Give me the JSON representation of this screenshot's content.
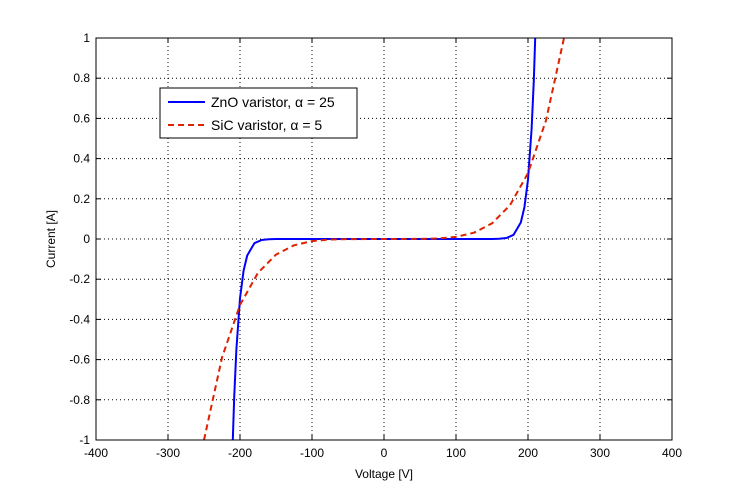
{
  "chart_data": {
    "type": "line",
    "title": "",
    "xlabel": "Voltage [V]",
    "ylabel": "Current [A]",
    "xlim": [
      -400,
      400
    ],
    "ylim": [
      -1,
      1
    ],
    "xticks": [
      -400,
      -300,
      -200,
      -100,
      0,
      100,
      200,
      300,
      400
    ],
    "yticks": [
      -1,
      -0.8,
      -0.6,
      -0.4,
      -0.2,
      0,
      0.2,
      0.4,
      0.6,
      0.8,
      1
    ],
    "xtick_labels": [
      "-400",
      "-300",
      "-200",
      "-100",
      "0",
      "100",
      "200",
      "300",
      "400"
    ],
    "ytick_labels": [
      "-1",
      "-0.8",
      "-0.6",
      "-0.4",
      "-0.2",
      "0",
      "0.2",
      "0.4",
      "0.6",
      "0.8",
      "1"
    ],
    "grid": true,
    "legend_position": "top-left",
    "series": [
      {
        "name": "ZnO varistor, α = 25",
        "color": "#0000ff",
        "style": "solid",
        "x": [
          -210,
          -208,
          -205,
          -200,
          -195,
          -190,
          -180,
          -170,
          -160,
          -150,
          -100,
          -50,
          0,
          50,
          100,
          150,
          160,
          170,
          180,
          190,
          195,
          200,
          205,
          208,
          210
        ],
        "y": [
          -1,
          -0.787,
          -0.548,
          -0.295,
          -0.157,
          -0.082,
          -0.021,
          -0.0051,
          -0.0011,
          -0.0002,
          0,
          0,
          0,
          0,
          0,
          0.0002,
          0.0011,
          0.0051,
          0.021,
          0.082,
          0.157,
          0.295,
          0.548,
          0.787,
          1
        ]
      },
      {
        "name": "SiC varistor, α = 5",
        "color": "#dd2200",
        "style": "dashed",
        "x": [
          -250,
          -225,
          -200,
          -175,
          -150,
          -125,
          -100,
          -75,
          -50,
          0,
          50,
          75,
          100,
          125,
          150,
          175,
          200,
          225,
          250
        ],
        "y": [
          -1,
          -0.59,
          -0.328,
          -0.168,
          -0.0778,
          -0.03125,
          -0.0102,
          -0.00243,
          -0.00032,
          0,
          0.00032,
          0.00243,
          0.0102,
          0.03125,
          0.0778,
          0.168,
          0.328,
          0.59,
          1
        ]
      }
    ]
  }
}
